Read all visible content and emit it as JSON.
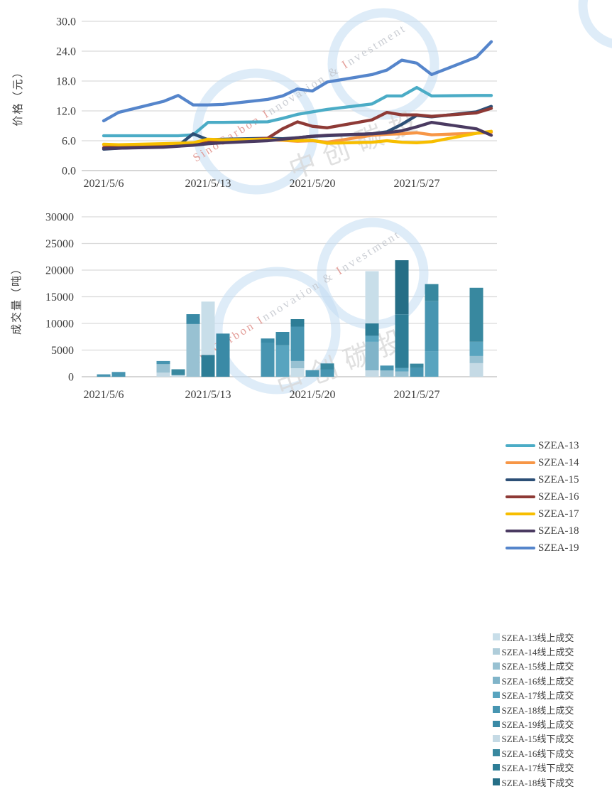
{
  "price_chart": {
    "y_title": "价格（元）",
    "y_ticks": [
      "30.0",
      "24.0",
      "18.0",
      "12.0",
      "6.0",
      "0.0"
    ],
    "x_ticks": [
      "2021/5/6",
      "2021/5/13",
      "2021/5/20",
      "2021/5/27"
    ]
  },
  "volume_chart": {
    "y_title": "成交量（吨）",
    "y_ticks": [
      "30000",
      "25000",
      "20000",
      "15000",
      "10000",
      "5000",
      "0"
    ],
    "x_ticks": [
      "2021/5/6",
      "2021/5/13",
      "2021/5/20",
      "2021/5/27"
    ]
  },
  "watermark": {
    "ring_color": "#c3ddf2",
    "cjk_text": "中创碳投",
    "cjk_color": "#d9d9d9",
    "text_segments": [
      {
        "text": "SinoCarbon ",
        "color": "#df8e88"
      },
      {
        "text": "I",
        "color": "#df8e88"
      },
      {
        "text": "nnovation & ",
        "color": "#c2c6cd"
      },
      {
        "text": "I",
        "color": "#df8e88"
      },
      {
        "text": "nvestment",
        "color": "#c2c6cd"
      }
    ]
  },
  "chart_data": [
    {
      "type": "line",
      "title": "",
      "ylabel": "价格（元）",
      "ylim": [
        0,
        30
      ],
      "y_tick_step": 6,
      "grid": true,
      "legend_position": "right",
      "x": [
        "2021/5/6",
        "2021/5/7",
        "2021/5/10",
        "2021/5/11",
        "2021/5/12",
        "2021/5/13",
        "2021/5/14",
        "2021/5/17",
        "2021/5/18",
        "2021/5/19",
        "2021/5/20",
        "2021/5/21",
        "2021/5/24",
        "2021/5/25",
        "2021/5/26",
        "2021/5/27",
        "2021/5/28",
        "2021/5/31",
        "2021/6/1"
      ],
      "x_tick_labels": [
        "2021/5/6",
        "2021/5/13",
        "2021/5/20",
        "2021/5/27"
      ],
      "series": [
        {
          "name": "SZEA-13",
          "color": "#4bacc6",
          "values": [
            7.0,
            7.0,
            7.0,
            7.0,
            7.2,
            9.7,
            9.7,
            9.8,
            10.5,
            11.3,
            11.8,
            12.3,
            13.4,
            15.0,
            15.0,
            16.7,
            15.0,
            15.1,
            15.1
          ]
        },
        {
          "name": "SZEA-14",
          "color": "#f79646",
          "values": [
            5.2,
            5.1,
            5.3,
            5.4,
            5.5,
            6.2,
            6.1,
            6.2,
            6.1,
            5.9,
            6.0,
            5.7,
            7.1,
            7.3,
            7.4,
            7.6,
            7.2,
            7.5,
            7.7
          ]
        },
        {
          "name": "SZEA-15",
          "color": "#2c4f76",
          "values": [
            4.3,
            4.5,
            4.8,
            5.0,
            7.4,
            6.2,
            6.3,
            6.5,
            6.4,
            6.6,
            6.9,
            7.0,
            7.4,
            7.8,
            9.3,
            11.1,
            10.8,
            11.8,
            12.9
          ]
        },
        {
          "name": "SZEA-16",
          "color": "#8e3a36",
          "values": [
            4.6,
            4.8,
            5.0,
            5.2,
            5.5,
            5.6,
            5.8,
            6.5,
            8.4,
            9.8,
            8.9,
            8.6,
            10.2,
            11.7,
            11.2,
            11.2,
            10.9,
            11.6,
            12.5
          ]
        },
        {
          "name": "SZEA-17",
          "color": "#f7be00",
          "values": [
            5.3,
            5.2,
            5.4,
            5.5,
            5.6,
            6.3,
            6.2,
            6.3,
            6.2,
            6.0,
            6.1,
            5.5,
            5.7,
            6.0,
            5.7,
            5.6,
            5.8,
            7.5,
            7.9
          ]
        },
        {
          "name": "SZEA-18",
          "color": "#4a3a61",
          "values": [
            4.4,
            4.5,
            4.7,
            4.9,
            5.1,
            5.4,
            5.6,
            6.0,
            6.3,
            6.6,
            6.9,
            7.1,
            7.4,
            7.6,
            8.0,
            8.8,
            9.7,
            8.4,
            7.1
          ]
        },
        {
          "name": "SZEA-19",
          "color": "#5585cb",
          "values": [
            10.0,
            11.7,
            13.9,
            15.1,
            13.2,
            13.2,
            13.3,
            14.3,
            15.0,
            16.4,
            16.0,
            17.8,
            19.3,
            20.2,
            22.2,
            21.6,
            19.3,
            22.8,
            25.9
          ]
        }
      ]
    },
    {
      "type": "stacked_bar",
      "title": "",
      "ylabel": "成交量（吨）",
      "ylim": [
        0,
        30000
      ],
      "y_tick_step": 5000,
      "grid": true,
      "legend_position": "right",
      "x_tick_labels": [
        "2021/5/6",
        "2021/5/13",
        "2021/5/20",
        "2021/5/27"
      ],
      "legend": [
        {
          "name": "SZEA-13线上成交",
          "color": "#c8dee9"
        },
        {
          "name": "SZEA-14线上成交",
          "color": "#afcdda"
        },
        {
          "name": "SZEA-15线上成交",
          "color": "#98c1d2"
        },
        {
          "name": "SZEA-16线上成交",
          "color": "#80b4c9"
        },
        {
          "name": "SZEA-17线上成交",
          "color": "#58a4bf"
        },
        {
          "name": "SZEA-18线上成交",
          "color": "#4795b1"
        },
        {
          "name": "SZEA-19线上成交",
          "color": "#3a8aa6"
        },
        {
          "name": "SZEA-15线下成交",
          "color": "#c5dae5"
        },
        {
          "name": "SZEA-16线下成交",
          "color": "#38889f"
        },
        {
          "name": "SZEA-17线下成交",
          "color": "#2d7d96"
        },
        {
          "name": "SZEA-18线下成交",
          "color": "#256e86"
        }
      ],
      "bars": [
        {
          "date": "2021/5/6",
          "segments": [
            {
              "series": "SZEA-18线上成交",
              "value": 450
            }
          ]
        },
        {
          "date": "2021/5/7",
          "segments": [
            {
              "series": "SZEA-18线上成交",
              "value": 900
            }
          ]
        },
        {
          "date": "2021/5/10",
          "segments": [
            {
              "series": "SZEA-15线下成交",
              "value": 760
            },
            {
              "series": "SZEA-15线上成交",
              "value": 1600
            },
            {
              "series": "SZEA-18线上成交",
              "value": 590
            }
          ]
        },
        {
          "date": "2021/5/11",
          "segments": [
            {
              "series": "SZEA-15线下成交",
              "value": 300
            },
            {
              "series": "SZEA-16线下成交",
              "value": 1100
            }
          ]
        },
        {
          "date": "2021/5/12",
          "segments": [
            {
              "series": "SZEA-15线上成交",
              "value": 9870
            },
            {
              "series": "SZEA-19线上成交",
              "value": 1860
            }
          ]
        },
        {
          "date": "2021/5/13",
          "segments": [
            {
              "series": "SZEA-17线下成交",
              "value": 4100
            },
            {
              "series": "SZEA-13线上成交",
              "value": 10000
            }
          ]
        },
        {
          "date": "2021/5/14",
          "segments": [
            {
              "series": "SZEA-19线上成交",
              "value": 8090
            }
          ]
        },
        {
          "date": "2021/5/17",
          "segments": [
            {
              "series": "SZEA-18线上成交",
              "value": 6400
            },
            {
              "series": "SZEA-19线上成交",
              "value": 770
            }
          ]
        },
        {
          "date": "2021/5/18",
          "segments": [
            {
              "series": "SZEA-17线上成交",
              "value": 5900
            },
            {
              "series": "SZEA-19线上成交",
              "value": 2500
            }
          ]
        },
        {
          "date": "2021/5/19",
          "segments": [
            {
              "series": "SZEA-13线上成交",
              "value": 1600
            },
            {
              "series": "SZEA-15线上成交",
              "value": 1350
            },
            {
              "series": "SZEA-18线上成交",
              "value": 6450
            },
            {
              "series": "SZEA-17线下成交",
              "value": 1400
            }
          ]
        },
        {
          "date": "2021/5/20",
          "segments": [
            {
              "series": "SZEA-18线上成交",
              "value": 1230
            }
          ]
        },
        {
          "date": "2021/5/21",
          "segments": [
            {
              "series": "SZEA-18线上成交",
              "value": 1400
            },
            {
              "series": "SZEA-16线下成交",
              "value": 1100
            }
          ]
        },
        {
          "date": "2021/5/24",
          "segments": [
            {
              "series": "SZEA-15线下成交",
              "value": 1200
            },
            {
              "series": "SZEA-16线上成交",
              "value": 5350
            },
            {
              "series": "SZEA-17线上成交",
              "value": 1130
            },
            {
              "series": "SZEA-17线下成交",
              "value": 2320
            },
            {
              "series": "SZEA-13线上成交",
              "value": 9800
            }
          ]
        },
        {
          "date": "2021/5/25",
          "segments": [
            {
              "series": "SZEA-15线上成交",
              "value": 1200
            },
            {
              "series": "SZEA-18线上成交",
              "value": 900
            }
          ]
        },
        {
          "date": "2021/5/26",
          "segments": [
            {
              "series": "SZEA-15线上成交",
              "value": 1000
            },
            {
              "series": "SZEA-17线上成交",
              "value": 650
            },
            {
              "series": "SZEA-17线下成交",
              "value": 10050
            },
            {
              "series": "SZEA-18线下成交",
              "value": 10150
            }
          ]
        },
        {
          "date": "2021/5/27",
          "segments": [
            {
              "series": "SZEA-18线上成交",
              "value": 1650
            },
            {
              "series": "SZEA-16线下成交",
              "value": 800
            }
          ]
        },
        {
          "date": "2021/5/28",
          "segments": [
            {
              "series": "SZEA-17线上成交",
              "value": 4780
            },
            {
              "series": "SZEA-18线上成交",
              "value": 9370
            },
            {
              "series": "SZEA-16线下成交",
              "value": 3220
            }
          ]
        },
        {
          "date": "2021/5/31",
          "segments": [
            {
              "series": "SZEA-15线下成交",
              "value": 2550
            },
            {
              "series": "SZEA-15线上成交",
              "value": 1330
            },
            {
              "series": "SZEA-17线上成交",
              "value": 2680
            },
            {
              "series": "SZEA-16线下成交",
              "value": 10140
            }
          ]
        }
      ]
    }
  ]
}
